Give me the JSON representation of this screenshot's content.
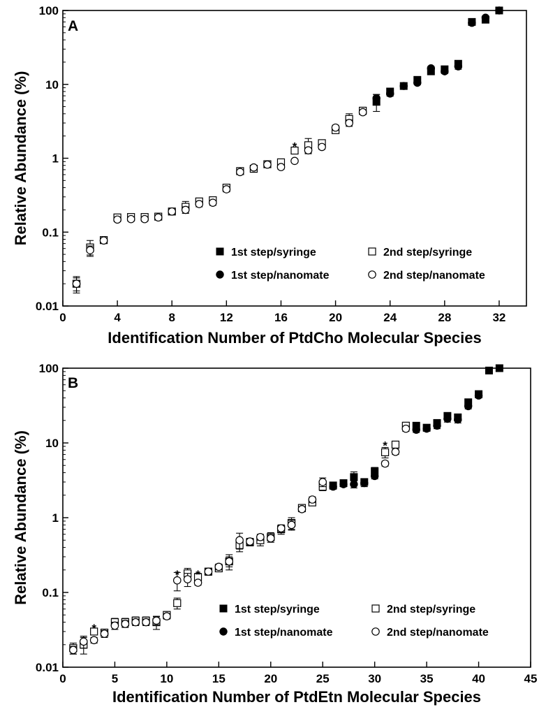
{
  "chart_data": [
    {
      "type": "scatter",
      "panel_label": "A",
      "title": "",
      "xlabel": "Identification Number of PtdCho Molecular Species",
      "ylabel": "Relative Abundance (%)",
      "xlim": [
        0,
        34
      ],
      "ylim": [
        0.01,
        100
      ],
      "yscale": "log",
      "xticks": [
        0,
        4,
        8,
        12,
        16,
        20,
        24,
        28,
        32
      ],
      "yticks": [
        0.01,
        0.1,
        1,
        10,
        100
      ],
      "ytick_labels": [
        "0.01",
        "0.1",
        "1",
        "10",
        "100"
      ],
      "grid": false,
      "legend_position": "lower-right",
      "series": [
        {
          "name": "1st step/syringe",
          "marker": "square-filled",
          "x": [
            23,
            24,
            25,
            26,
            27,
            28,
            29,
            30,
            31,
            32
          ],
          "y": [
            5.8,
            8,
            9.5,
            11.5,
            15,
            16,
            19,
            70,
            75,
            100
          ],
          "err": [
            1.5,
            0.8,
            0.6,
            0.8,
            1.2,
            1.2,
            2,
            4,
            4,
            3
          ]
        },
        {
          "name": "2nd step/syringe",
          "marker": "square-open",
          "x": [
            1,
            2,
            3,
            4,
            5,
            6,
            7,
            8,
            9,
            10,
            11,
            12,
            13,
            14,
            15,
            16,
            17,
            18,
            19,
            20,
            21,
            22
          ],
          "y": [
            0.02,
            0.062,
            0.078,
            0.158,
            0.16,
            0.16,
            0.162,
            0.19,
            0.22,
            0.26,
            0.27,
            0.4,
            0.67,
            0.72,
            0.83,
            0.88,
            1.27,
            1.5,
            1.6,
            2.4,
            3.4,
            4.4
          ],
          "err": [
            0.005,
            0.015,
            0.005,
            0.01,
            0.01,
            0.01,
            0.01,
            0.01,
            0.04,
            0.02,
            0.02,
            0.03,
            0.05,
            0.05,
            0.05,
            0.05,
            0.1,
            0.35,
            0.1,
            0.2,
            0.6,
            0.3
          ]
        },
        {
          "name": "1st step/nanomate",
          "marker": "circle-filled",
          "x": [
            23,
            24,
            25,
            26,
            27,
            28,
            29,
            30,
            31,
            32
          ],
          "y": [
            6.5,
            7.5,
            9.5,
            10.5,
            16.5,
            15,
            17.5,
            68,
            80,
            100
          ],
          "err": [
            0.8,
            0.6,
            0.6,
            0.6,
            1,
            1,
            1.5,
            3,
            3,
            2
          ]
        },
        {
          "name": "2nd step/nanomate",
          "marker": "circle-open",
          "x": [
            1,
            2,
            3,
            4,
            5,
            6,
            7,
            8,
            9,
            10,
            11,
            12,
            13,
            14,
            15,
            16,
            17,
            18,
            19,
            20,
            21,
            22
          ],
          "y": [
            0.02,
            0.057,
            0.077,
            0.148,
            0.15,
            0.15,
            0.158,
            0.19,
            0.2,
            0.24,
            0.25,
            0.38,
            0.65,
            0.75,
            0.82,
            0.76,
            0.92,
            1.28,
            1.42,
            2.6,
            3.0,
            4.2
          ],
          "err": [
            0.004,
            0.008,
            0.004,
            0.01,
            0.01,
            0.01,
            0.01,
            0.01,
            0.02,
            0.02,
            0.02,
            0.03,
            0.04,
            0.04,
            0.05,
            0.05,
            0.05,
            0.1,
            0.1,
            0.2,
            0.3,
            0.3
          ]
        }
      ],
      "annotations": [
        {
          "text": "*",
          "x": 17,
          "y": 1.65
        }
      ]
    },
    {
      "type": "scatter",
      "panel_label": "B",
      "title": "",
      "xlabel": "Identification Number of PtdEtn Molecular Species",
      "ylabel": "Relative Abundance (%)",
      "xlim": [
        0,
        45
      ],
      "ylim": [
        0.01,
        100
      ],
      "yscale": "log",
      "xticks": [
        0,
        5,
        10,
        15,
        20,
        25,
        30,
        35,
        40,
        45
      ],
      "yticks": [
        0.01,
        0.1,
        1,
        10,
        100
      ],
      "ytick_labels": [
        "0.01",
        "0.1",
        "1",
        "10",
        "100"
      ],
      "grid": false,
      "legend_position": "lower-right",
      "series": [
        {
          "name": "1st step/syringe",
          "marker": "square-filled",
          "x": [
            26,
            27,
            28,
            29,
            30,
            34,
            35,
            36,
            37,
            38,
            39,
            40,
            41,
            42
          ],
          "y": [
            2.7,
            2.9,
            3.5,
            3.0,
            4.2,
            17,
            16,
            18.5,
            23,
            22,
            35,
            45,
            93,
            100
          ],
          "err": [
            0.2,
            0.3,
            0.6,
            0.3,
            0.5,
            1.5,
            1.5,
            2,
            2,
            2,
            3,
            3,
            3,
            2
          ]
        },
        {
          "name": "2nd step/syringe",
          "marker": "square-open",
          "x": [
            1,
            2,
            3,
            4,
            5,
            6,
            7,
            8,
            9,
            10,
            11,
            12,
            13,
            14,
            15,
            16,
            17,
            18,
            19,
            20,
            21,
            22,
            23,
            24,
            25,
            31,
            32,
            33
          ],
          "y": [
            0.018,
            0.02,
            0.03,
            0.029,
            0.04,
            0.04,
            0.042,
            0.042,
            0.04,
            0.05,
            0.072,
            0.18,
            0.16,
            0.19,
            0.21,
            0.26,
            0.43,
            0.47,
            0.5,
            0.55,
            0.7,
            0.85,
            1.35,
            1.6,
            2.6,
            7.5,
            9.5,
            17
          ],
          "err": [
            0.003,
            0.005,
            0.003,
            0.003,
            0.005,
            0.005,
            0.005,
            0.005,
            0.008,
            0.004,
            0.012,
            0.03,
            0.02,
            0.02,
            0.02,
            0.06,
            0.08,
            0.05,
            0.08,
            0.08,
            0.1,
            0.15,
            0.15,
            0.15,
            0.3,
            1.2,
            1,
            1.5
          ]
        },
        {
          "name": "1st step/nanomate",
          "marker": "circle-filled",
          "x": [
            26,
            27,
            28,
            29,
            30,
            34,
            35,
            36,
            37,
            38,
            39,
            40
          ],
          "y": [
            2.6,
            2.8,
            2.8,
            2.9,
            3.6,
            15,
            15.5,
            17,
            21,
            20.5,
            31,
            43
          ],
          "err": [
            0.2,
            0.2,
            0.3,
            0.3,
            0.3,
            1.2,
            1.2,
            1.5,
            2,
            2,
            2.5,
            3
          ]
        },
        {
          "name": "2nd step/nanomate",
          "marker": "circle-open",
          "x": [
            1,
            2,
            3,
            4,
            5,
            6,
            7,
            8,
            9,
            10,
            11,
            12,
            13,
            14,
            15,
            16,
            17,
            18,
            19,
            20,
            21,
            22,
            23,
            24,
            25,
            31,
            32,
            33
          ],
          "y": [
            0.017,
            0.022,
            0.023,
            0.028,
            0.036,
            0.038,
            0.04,
            0.04,
            0.042,
            0.048,
            0.145,
            0.15,
            0.135,
            0.19,
            0.22,
            0.26,
            0.5,
            0.48,
            0.55,
            0.53,
            0.72,
            0.8,
            1.3,
            1.75,
            3.0,
            5.3,
            7.6,
            15.5
          ],
          "err": [
            0.002,
            0.004,
            0.002,
            0.003,
            0.004,
            0.004,
            0.004,
            0.004,
            0.005,
            0.004,
            0.04,
            0.03,
            0.01,
            0.02,
            0.02,
            0.04,
            0.12,
            0.05,
            0.05,
            0.06,
            0.08,
            0.12,
            0.1,
            0.15,
            0.4,
            0.4,
            0.6,
            1.2
          ]
        }
      ],
      "annotations": [
        {
          "text": "*",
          "x": 3,
          "y": 0.038
        },
        {
          "text": "*",
          "x": 11,
          "y": 0.2
        },
        {
          "text": "*",
          "x": 13,
          "y": 0.2
        },
        {
          "text": "*",
          "x": 31,
          "y": 10.5
        }
      ]
    }
  ]
}
